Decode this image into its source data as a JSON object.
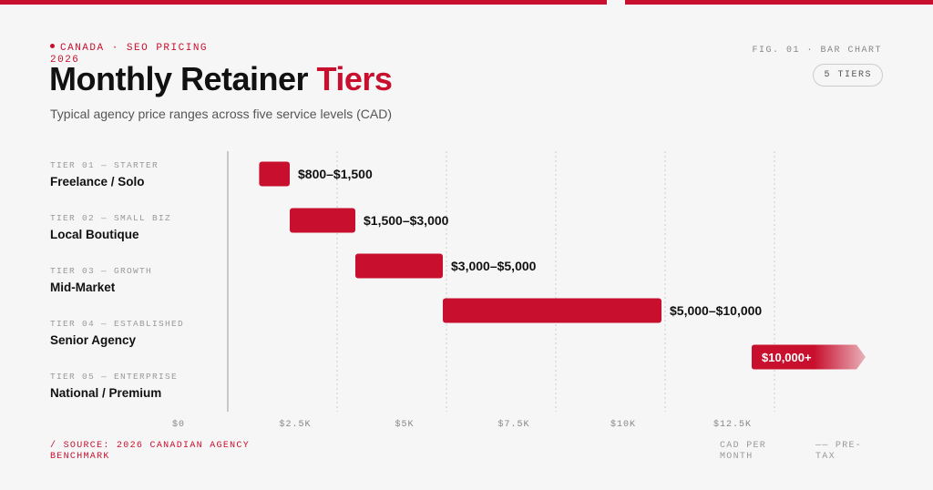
{
  "header": {
    "eyebrow": "CANADA · SEO PRICING 2026",
    "title_main": "Monthly Retainer",
    "title_accent": "Tiers",
    "subtitle": "Typical agency price ranges across five service levels (CAD)",
    "fig_label": "FIG. 01 · BAR CHART",
    "badge": "5 TIERS"
  },
  "footer": {
    "source": "/ SOURCE: 2026 CANADIAN AGENCY BENCHMARK",
    "unit": "CAD PER MONTH",
    "note": "—— PRE-TAX"
  },
  "colors": {
    "accent": "#c8102e",
    "grid": "#cccccc",
    "text": "#111111",
    "muted": "#999999"
  },
  "chart_data": {
    "type": "bar",
    "orientation": "horizontal-range",
    "categories": [
      {
        "kicker": "TIER 01 — STARTER",
        "name": "Freelance / Solo"
      },
      {
        "kicker": "TIER 02 — SMALL BIZ",
        "name": "Local Boutique"
      },
      {
        "kicker": "TIER 03 — GROWTH",
        "name": "Mid-Market"
      },
      {
        "kicker": "TIER 04 — ESTABLISHED",
        "name": "Senior Agency"
      },
      {
        "kicker": "TIER 05 — ENTERPRISE",
        "name": "National / Premium"
      }
    ],
    "ranges": [
      {
        "low": 800,
        "high": 1500,
        "label": "$800–$1,500",
        "open_ended": false
      },
      {
        "low": 1500,
        "high": 3000,
        "label": "$1,500–$3,000",
        "open_ended": false
      },
      {
        "low": 3000,
        "high": 5000,
        "label": "$3,000–$5,000",
        "open_ended": false
      },
      {
        "low": 5000,
        "high": 10000,
        "label": "$5,000–$10,000",
        "open_ended": false
      },
      {
        "low": 10000,
        "high": null,
        "label": "$10,000+",
        "open_ended": true
      }
    ],
    "xticks": [
      {
        "value": 0,
        "label": "$0"
      },
      {
        "value": 2500,
        "label": "$2.5K"
      },
      {
        "value": 5000,
        "label": "$5K"
      },
      {
        "value": 7500,
        "label": "$7.5K"
      },
      {
        "value": 10000,
        "label": "$10K"
      },
      {
        "value": 12500,
        "label": "$12.5K"
      }
    ],
    "xlim": [
      0,
      12500
    ],
    "grid": true
  }
}
